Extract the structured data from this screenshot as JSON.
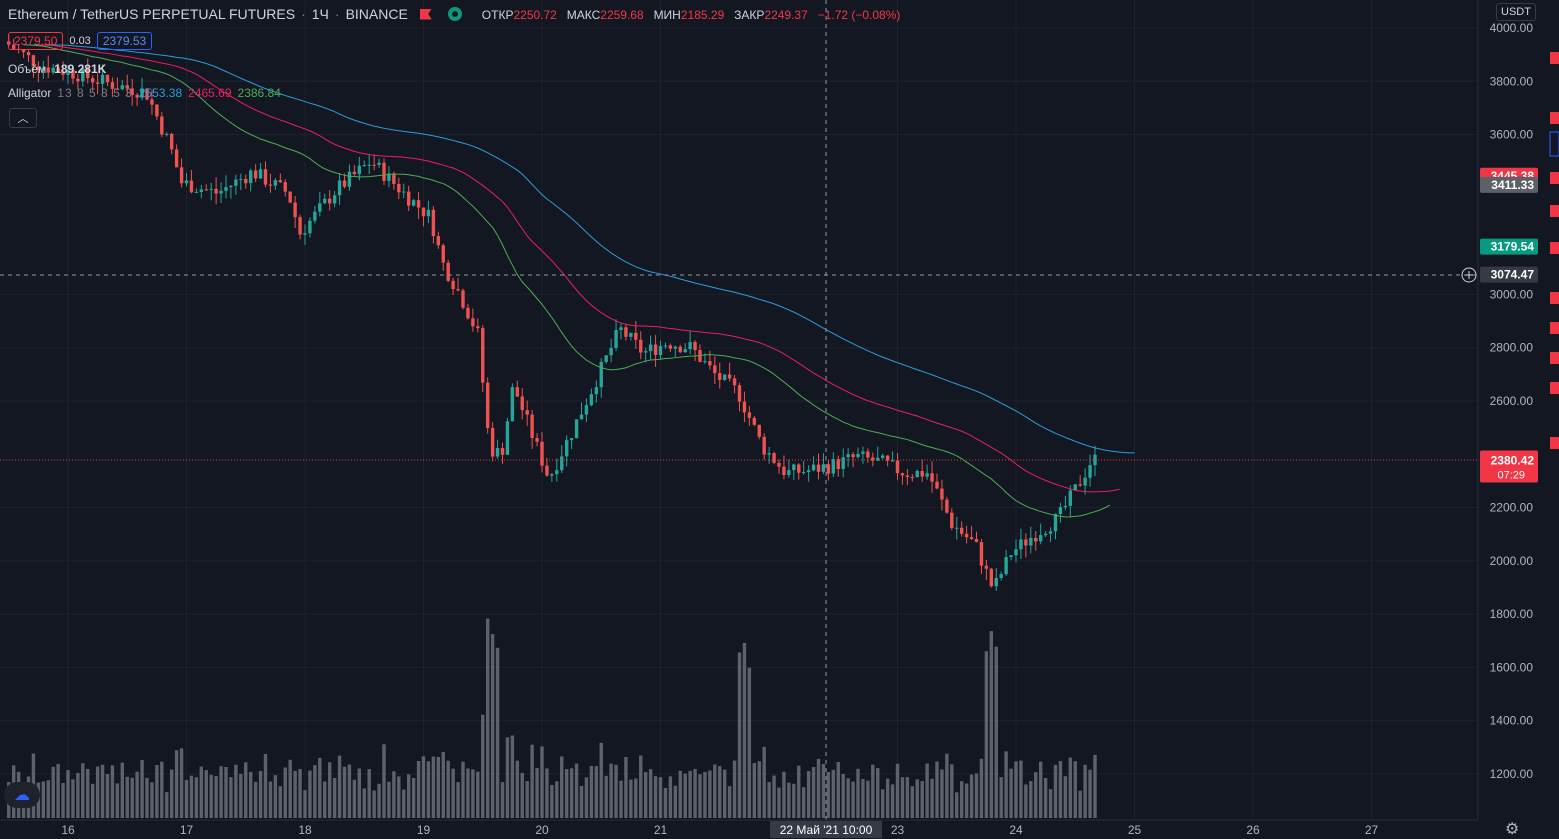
{
  "header": {
    "symbol": "Ethereum / TetherUS PERPETUAL FUTURES",
    "interval": "1Ч",
    "exchange": "BINANCE",
    "ohlc": [
      {
        "label": "ОТКР",
        "value": "2250.72"
      },
      {
        "label": "МАКС",
        "value": "2259.68"
      },
      {
        "label": "МИН",
        "value": "2185.29"
      },
      {
        "label": "ЗАКР",
        "value": "2249.37"
      },
      {
        "label": "",
        "value": "−1.72 (−0.08%)"
      }
    ]
  },
  "quote": {
    "bid": "2379.50",
    "spread": "0.03",
    "ask": "2379.53"
  },
  "volume_indicator": {
    "label": "Объём",
    "value": "189.281K"
  },
  "alligator": {
    "label": "Alligator",
    "params": "13 8 5 8 5 3",
    "jaw": "2553.38",
    "teeth": "2465.69",
    "lips": "2386.84"
  },
  "currency_label": "USDT",
  "price_axis": {
    "ticks": [
      "4000.00",
      "3800.00",
      "3600.00",
      "3000.00",
      "2800.00",
      "2600.00",
      "2200.00",
      "2000.00",
      "1800.00",
      "1600.00",
      "1400.00",
      "1200.00"
    ]
  },
  "price_tags": [
    {
      "text": "3445.38",
      "price": 3445.38,
      "color": "#f23645",
      "textColor": "#ffffff"
    },
    {
      "text": "3411.33",
      "price": 3411.33,
      "color": "#5d606b",
      "textColor": "#ffffff"
    },
    {
      "text": "3179.54",
      "price": 3179.54,
      "color": "#089981",
      "textColor": "#ffffff"
    },
    {
      "text": "3074.47",
      "price": 3074.47,
      "color": "#363a45",
      "textColor": "#ffffff"
    }
  ],
  "current_price": {
    "text": "2380.42",
    "countdown": "07:29",
    "price": 2380.42,
    "color": "#f23645"
  },
  "time_axis": {
    "labels": [
      "16",
      "17",
      "18",
      "19",
      "20",
      "21",
      "23",
      "24",
      "25",
      "26",
      "27"
    ],
    "crosshair_label": "22 Май '21   10:00"
  },
  "colors": {
    "background": "#131722",
    "up": "#26a69a",
    "down": "#ef5350",
    "jaw": "#2a9ddc",
    "teeth": "#e91e63",
    "lips": "#4caf50",
    "volume": "#787b86",
    "grid": "#1e222d"
  },
  "chart_data": {
    "type": "candlestick",
    "title": "Ethereum / TetherUS PERPETUAL FUTURES · 1Ч · BINANCE",
    "ylim": [
      1100,
      4040
    ],
    "x_unit": "days (May 2021)",
    "x_range": [
      15.5,
      27.8
    ],
    "keypoints": [
      [
        15.5,
        3950
      ],
      [
        15.8,
        3860
      ],
      [
        16.1,
        3830
      ],
      [
        16.4,
        3790
      ],
      [
        16.7,
        3760
      ],
      [
        16.9,
        3560
      ],
      [
        17.0,
        3420
      ],
      [
        17.3,
        3380
      ],
      [
        17.6,
        3460
      ],
      [
        17.9,
        3380
      ],
      [
        18.0,
        3230
      ],
      [
        18.3,
        3390
      ],
      [
        18.6,
        3500
      ],
      [
        18.9,
        3370
      ],
      [
        19.1,
        3290
      ],
      [
        19.2,
        3120
      ],
      [
        19.35,
        3000
      ],
      [
        19.5,
        2850
      ],
      [
        19.6,
        2420
      ],
      [
        19.7,
        2400
      ],
      [
        19.8,
        2660
      ],
      [
        19.9,
        2540
      ],
      [
        20.1,
        2310
      ],
      [
        20.3,
        2490
      ],
      [
        20.5,
        2680
      ],
      [
        20.7,
        2870
      ],
      [
        20.9,
        2780
      ],
      [
        21.1,
        2820
      ],
      [
        21.3,
        2800
      ],
      [
        21.5,
        2700
      ],
      [
        21.7,
        2630
      ],
      [
        21.9,
        2430
      ],
      [
        22.1,
        2330
      ],
      [
        22.3,
        2340
      ],
      [
        22.5,
        2360
      ],
      [
        22.7,
        2390
      ],
      [
        22.9,
        2370
      ],
      [
        23.1,
        2330
      ],
      [
        23.3,
        2330
      ],
      [
        23.5,
        2140
      ],
      [
        23.7,
        2060
      ],
      [
        23.85,
        1890
      ],
      [
        24.0,
        2030
      ],
      [
        24.2,
        2100
      ],
      [
        24.4,
        2160
      ],
      [
        24.6,
        2310
      ],
      [
        24.68,
        2380
      ]
    ],
    "volume_peak_days": [
      19.6,
      21.7,
      23.8
    ]
  }
}
